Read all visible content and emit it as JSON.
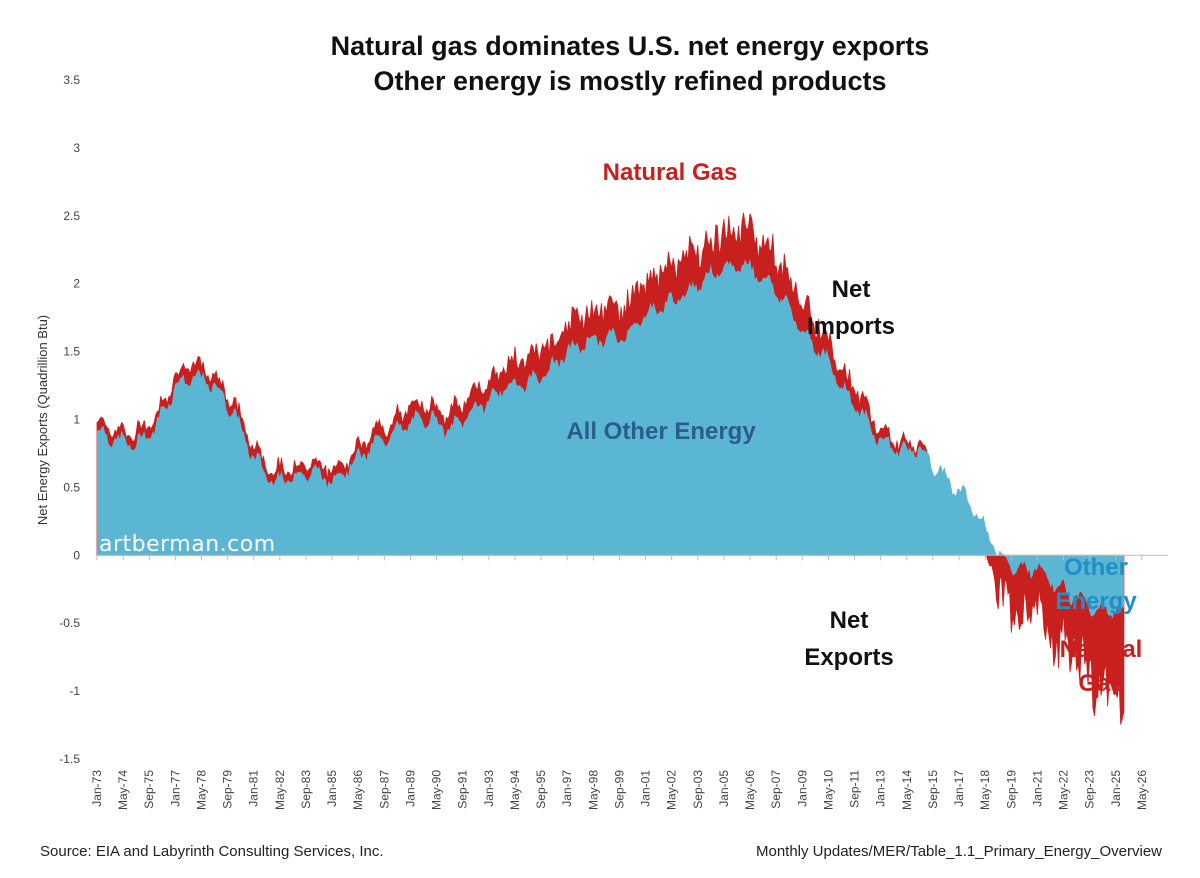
{
  "chart_data": {
    "type": "area",
    "title": [
      "Natural gas dominates U.S. net energy exports",
      "Other energy is mostly refined products"
    ],
    "ylabel": "Net Energy Exports (Quadrillion Btu)",
    "ylim": [
      -1.5,
      3.5
    ],
    "yticks": [
      "3.5",
      "3",
      "2.5",
      "2",
      "1.5",
      "1",
      "0.5",
      "0",
      "-0.5",
      "-1",
      "-1.5"
    ],
    "ytick_values": [
      3.5,
      3,
      2.5,
      2,
      1.5,
      1,
      0.5,
      0,
      -0.5,
      -1,
      -1.5
    ],
    "xticks": [
      "Jan-73",
      "May-74",
      "Sep-75",
      "Jan-77",
      "May-78",
      "Sep-79",
      "Jan-81",
      "May-82",
      "Sep-83",
      "Jan-85",
      "May-86",
      "Sep-87",
      "Jan-89",
      "May-90",
      "Sep-91",
      "Jan-93",
      "May-94",
      "Sep-95",
      "Jan-97",
      "May-98",
      "Sep-99",
      "Jan-01",
      "May-02",
      "Sep-03",
      "Jan-05",
      "May-06",
      "Sep-07",
      "Jan-09",
      "May-10",
      "Sep-11",
      "Jan-13",
      "May-14",
      "Sep-15",
      "Jan-17",
      "May-18",
      "Sep-19",
      "Jan-21",
      "May-22",
      "Sep-23",
      "Jan-25",
      "May-26"
    ],
    "x_start": "Jan-73",
    "x_end": "May-26",
    "data_last": "Jun-25",
    "series": [
      {
        "name": "All Other Energy",
        "color": "#5bb6d3",
        "x": [
          "Jan-73",
          "Jan-74",
          "Jan-75",
          "Jan-76",
          "Jan-77",
          "Jan-78",
          "Jan-79",
          "Jan-80",
          "Jan-81",
          "Jan-82",
          "Jan-83",
          "Jan-84",
          "Jan-85",
          "Jan-86",
          "Jan-87",
          "Jan-88",
          "Jan-89",
          "Jan-90",
          "Jan-91",
          "Jan-92",
          "Jan-93",
          "Jan-94",
          "Jan-95",
          "Jan-96",
          "Jan-97",
          "Jan-98",
          "Jan-99",
          "Jan-00",
          "Jan-01",
          "Jan-02",
          "Jan-03",
          "Jan-04",
          "Jan-05",
          "Jan-06",
          "Jan-07",
          "Jan-08",
          "Jan-09",
          "Jan-10",
          "Jan-11",
          "Jan-12",
          "Jan-13",
          "Jan-14",
          "Jan-15",
          "Jan-16",
          "Jan-17",
          "Jan-18",
          "Jan-19",
          "Jan-20",
          "Jan-21",
          "Jan-22",
          "Jan-23",
          "Jan-24",
          "Jan-25",
          "Jun-25"
        ],
        "values": [
          0.92,
          0.85,
          0.82,
          0.95,
          1.25,
          1.32,
          1.25,
          1.05,
          0.72,
          0.55,
          0.58,
          0.62,
          0.55,
          0.68,
          0.8,
          0.9,
          0.98,
          1.02,
          0.92,
          1.05,
          1.15,
          1.25,
          1.28,
          1.35,
          1.5,
          1.58,
          1.6,
          1.62,
          1.78,
          1.85,
          1.92,
          2.05,
          2.1,
          2.15,
          2.05,
          1.9,
          1.65,
          1.5,
          1.25,
          1.05,
          0.85,
          0.78,
          0.78,
          0.62,
          0.48,
          0.3,
          0.02,
          -0.12,
          -0.08,
          -0.22,
          -0.32,
          -0.4,
          -0.42,
          -0.45
        ]
      },
      {
        "name": "Natural Gas",
        "color": "#c8201e",
        "x": [
          "Jan-73",
          "Jan-74",
          "Jan-75",
          "Jan-76",
          "Jan-77",
          "Jan-78",
          "Jan-79",
          "Jan-80",
          "Jan-81",
          "Jan-82",
          "Jan-83",
          "Jan-84",
          "Jan-85",
          "Jan-86",
          "Jan-87",
          "Jan-88",
          "Jan-89",
          "Jan-90",
          "Jan-91",
          "Jan-92",
          "Jan-93",
          "Jan-94",
          "Jan-95",
          "Jan-96",
          "Jan-97",
          "Jan-98",
          "Jan-99",
          "Jan-00",
          "Jan-01",
          "Jan-02",
          "Jan-03",
          "Jan-04",
          "Jan-05",
          "Jan-06",
          "Jan-07",
          "Jan-08",
          "Jan-09",
          "Jan-10",
          "Jan-11",
          "Jan-12",
          "Jan-13",
          "Jan-14",
          "Jan-15",
          "Jan-16",
          "Jan-17",
          "Jan-18",
          "Jan-19",
          "Jan-20",
          "Jan-21",
          "Jan-22",
          "Jan-23",
          "Jan-24",
          "Jan-25",
          "Jun-25"
        ],
        "values": [
          0.05,
          0.05,
          0.05,
          0.05,
          0.06,
          0.06,
          0.06,
          0.05,
          0.05,
          0.05,
          0.05,
          0.05,
          0.05,
          0.05,
          0.06,
          0.07,
          0.08,
          0.08,
          0.09,
          0.1,
          0.12,
          0.14,
          0.15,
          0.16,
          0.17,
          0.18,
          0.19,
          0.2,
          0.22,
          0.22,
          0.24,
          0.25,
          0.26,
          0.26,
          0.25,
          0.22,
          0.18,
          0.15,
          0.12,
          0.08,
          0.05,
          0.03,
          0.01,
          -0.02,
          -0.06,
          -0.12,
          -0.25,
          -0.35,
          -0.3,
          -0.4,
          -0.45,
          -0.5,
          -0.55,
          -0.58
        ]
      }
    ],
    "annotations": {
      "natural_gas_top": "Natural Gas",
      "net_imports": [
        "Net",
        "Imports"
      ],
      "all_other_energy": "All Other Energy",
      "net_exports": [
        "Net",
        "Exports"
      ],
      "other_energy": [
        "Other",
        "Energy"
      ],
      "natural_gas_right": [
        "Natural",
        "Gas"
      ]
    },
    "grid": false,
    "legend": "none"
  },
  "watermark": "artberman.com",
  "footer": {
    "source": "Source: EIA and Labyrinth Consulting Services, Inc.",
    "reference": "Monthly Updates/MER/Table_1.1_Primary_Energy_Overview"
  },
  "colors": {
    "other_energy": "#5bb6d3",
    "natural_gas": "#c8201e",
    "other_energy_label": "#1f8fc8",
    "all_other_label": "#2a5d8f"
  }
}
